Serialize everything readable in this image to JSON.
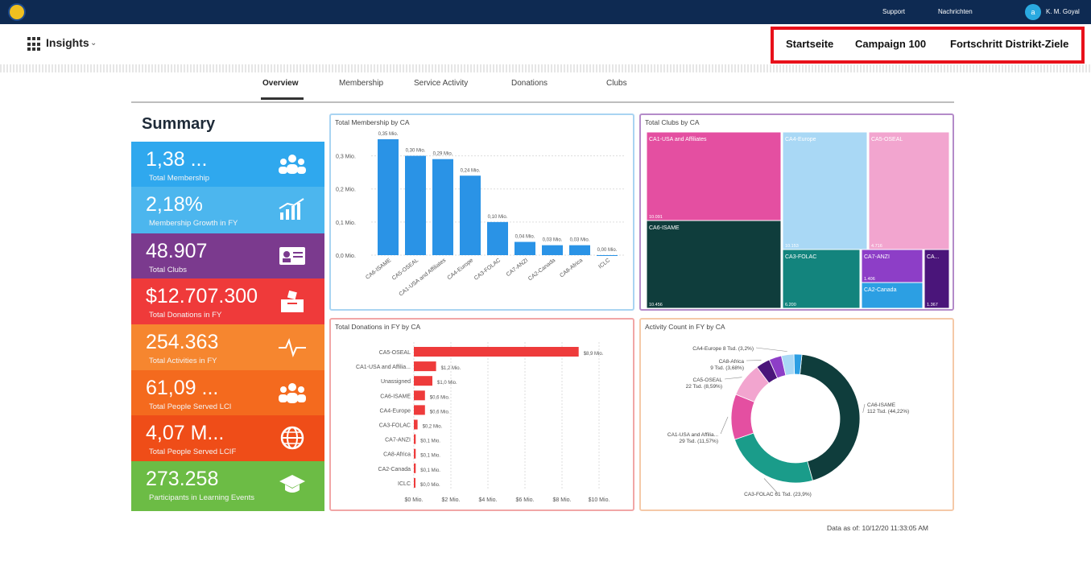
{
  "topbar": {
    "support": "Support",
    "messages": "Nachrichten",
    "avatar_initial": "a",
    "user": "K. M. Goyal",
    "logo_icon": "lions-logo-icon"
  },
  "header": {
    "app_name": "Insights",
    "caret": "⌄",
    "apps_icon": "apps-grid-icon",
    "nav": [
      "Startseite",
      "Campaign 100",
      "Fortschritt Distrikt-Ziele"
    ]
  },
  "tabs": [
    "Overview",
    "Membership",
    "Service Activity",
    "Donations",
    "Clubs"
  ],
  "active_tab": "Overview",
  "summary": {
    "title": "Summary",
    "kpis": [
      {
        "value": "1,38 ...",
        "label": "Total Membership",
        "color": "#2fa8ee",
        "icon": "people-group-icon"
      },
      {
        "value": "2,18%",
        "label": "Membership Growth in FY",
        "color": "#4cb6ee",
        "icon": "growth-chart-icon"
      },
      {
        "value": "48.907",
        "label": "Total Clubs",
        "color": "#7b3a8e",
        "icon": "id-card-icon"
      },
      {
        "value": "$12.707.300",
        "label": "Total Donations in FY",
        "color": "#ef3a3a",
        "icon": "donation-box-icon"
      },
      {
        "value": "254.363",
        "label": "Total Activities in FY",
        "color": "#f6862f",
        "icon": "activity-pulse-icon"
      },
      {
        "value": "61,09 ...",
        "label": "Total People Served LCI",
        "color": "#f46a1e",
        "icon": "people-served-icon"
      },
      {
        "value": "4,07 M...",
        "label": "Total People Served LCIF",
        "color": "#ef4d18",
        "icon": "globe-icon"
      },
      {
        "value": "273.258",
        "label": "Participants in Learning Events",
        "color": "#6cbc45",
        "icon": "graduation-cap-icon"
      }
    ]
  },
  "footer": {
    "data_as_of": "Data as of: 10/12/20 11:33:05 AM"
  },
  "chart_data": [
    {
      "type": "bar",
      "title": "Total Membership by CA",
      "categories": [
        "CA6-ISAME",
        "CA5-OSEAL",
        "CA1-USA and Affiliates",
        "CA4-Europe",
        "CA3-FOLAC",
        "CA7-ANZI",
        "CA2-Canada",
        "CA8-Africa",
        "ICLC"
      ],
      "values": [
        0.35,
        0.3,
        0.29,
        0.24,
        0.1,
        0.04,
        0.03,
        0.03,
        0.0
      ],
      "data_labels": [
        "0,35 Mio.",
        "0,30 Mio.",
        "0,29 Mio.",
        "0,24 Mio.",
        "0,10 Mio.",
        "0,04 Mio.",
        "0,03 Mio.",
        "0,03 Mio.",
        "0,00 Mio."
      ],
      "yticks": [
        "0,0 Mio.",
        "0,1 Mio.",
        "0,2 Mio.",
        "0,3 Mio."
      ],
      "ylim": [
        0,
        0.35
      ],
      "color": "#2a93e6",
      "border_color": "#a9d4f2"
    },
    {
      "type": "treemap",
      "title": "Total Clubs by CA",
      "items": [
        {
          "name": "CA1-USA and Affiliates",
          "value": 10091,
          "label": "10.091",
          "color": "#e44fa1"
        },
        {
          "name": "CA6-ISAME",
          "value": 10456,
          "label": "10.456",
          "color": "#0f3d3c"
        },
        {
          "name": "CA4-Europe",
          "value": 10153,
          "label": "10.153",
          "color": "#a9d8f5"
        },
        {
          "name": "CA5-OSEAL",
          "value": 4716,
          "label": "4.716",
          "color": "#f2a5cf"
        },
        {
          "name": "CA3-FOLAC",
          "value": 6200,
          "label": "6.200",
          "color": "#13847d"
        },
        {
          "name": "CA7-ANZI",
          "value": 1406,
          "label": "1.406",
          "color": "#8d3ec7"
        },
        {
          "name": "CA2-Canada",
          "value": 1500,
          "label": "",
          "color": "#2c9fe3"
        },
        {
          "name": "CA...",
          "value": 1367,
          "label": "1.367",
          "color": "#4a157a"
        }
      ],
      "border_color": "#b48bc9"
    },
    {
      "type": "bar",
      "orientation": "horizontal",
      "title": "Total Donations in FY by CA",
      "categories": [
        "CA5-OSEAL",
        "CA1-USA and Affilia...",
        "Unassigned",
        "CA6-ISAME",
        "CA4-Europe",
        "CA3-FOLAC",
        "CA7-ANZI",
        "CA8-Africa",
        "CA2-Canada",
        "ICLC"
      ],
      "values": [
        8.9,
        1.2,
        1.0,
        0.6,
        0.6,
        0.2,
        0.1,
        0.1,
        0.1,
        0.0
      ],
      "data_labels": [
        "$8,9 Mio.",
        "$1,2 Mio.",
        "$1,0 Mio.",
        "$0,6 Mio.",
        "$0,6 Mio.",
        "$0,2 Mio.",
        "$0,1 Mio.",
        "$0,1 Mio.",
        "$0,1 Mio.",
        "$0,0 Mio."
      ],
      "xticks": [
        "$0 Mio.",
        "$2 Mio.",
        "$4 Mio.",
        "$6 Mio.",
        "$8 Mio.",
        "$10 Mio."
      ],
      "xlim": [
        0,
        10
      ],
      "color": "#ee3b3b",
      "border_color": "#f1a6a6"
    },
    {
      "type": "pie",
      "donut": true,
      "title": "Activity Count in FY by CA",
      "slices": [
        {
          "name": "CA6-ISAME",
          "value": 112,
          "label": "CA6-ISAME\n112 Tsd. (44,22%)",
          "color": "#0f3d3c"
        },
        {
          "name": "CA3-FOLAC",
          "value": 61,
          "label": "CA3-FOLAC 61 Tsd. (23,9%)",
          "color": "#1a9c8a"
        },
        {
          "name": "CA1-USA and Affiliates",
          "value": 29,
          "label": "CA1-USA and Affilia...\n29 Tsd. (11,57%)",
          "color": "#e44fa1"
        },
        {
          "name": "CA5-OSEAL",
          "value": 22,
          "label": "CA5-OSEAL\n22 Tsd. (8,59%)",
          "color": "#f2a5cf"
        },
        {
          "name": "CA8-Africa",
          "value": 9,
          "label": "CA8-Africa\n9 Tsd. (3,68%)",
          "color": "#4a157a"
        },
        {
          "name": "CA7-ANZI",
          "value": 8,
          "label": "",
          "color": "#8d3ec7"
        },
        {
          "name": "CA4-Europe",
          "value": 8,
          "label": "CA4-Europe 8 Tsd. (3,2%)",
          "color": "#a9d8f5"
        },
        {
          "name": "CA2-Canada",
          "value": 5,
          "label": "",
          "color": "#2c9fe3"
        }
      ],
      "border_color": "#f5c9a8"
    }
  ]
}
